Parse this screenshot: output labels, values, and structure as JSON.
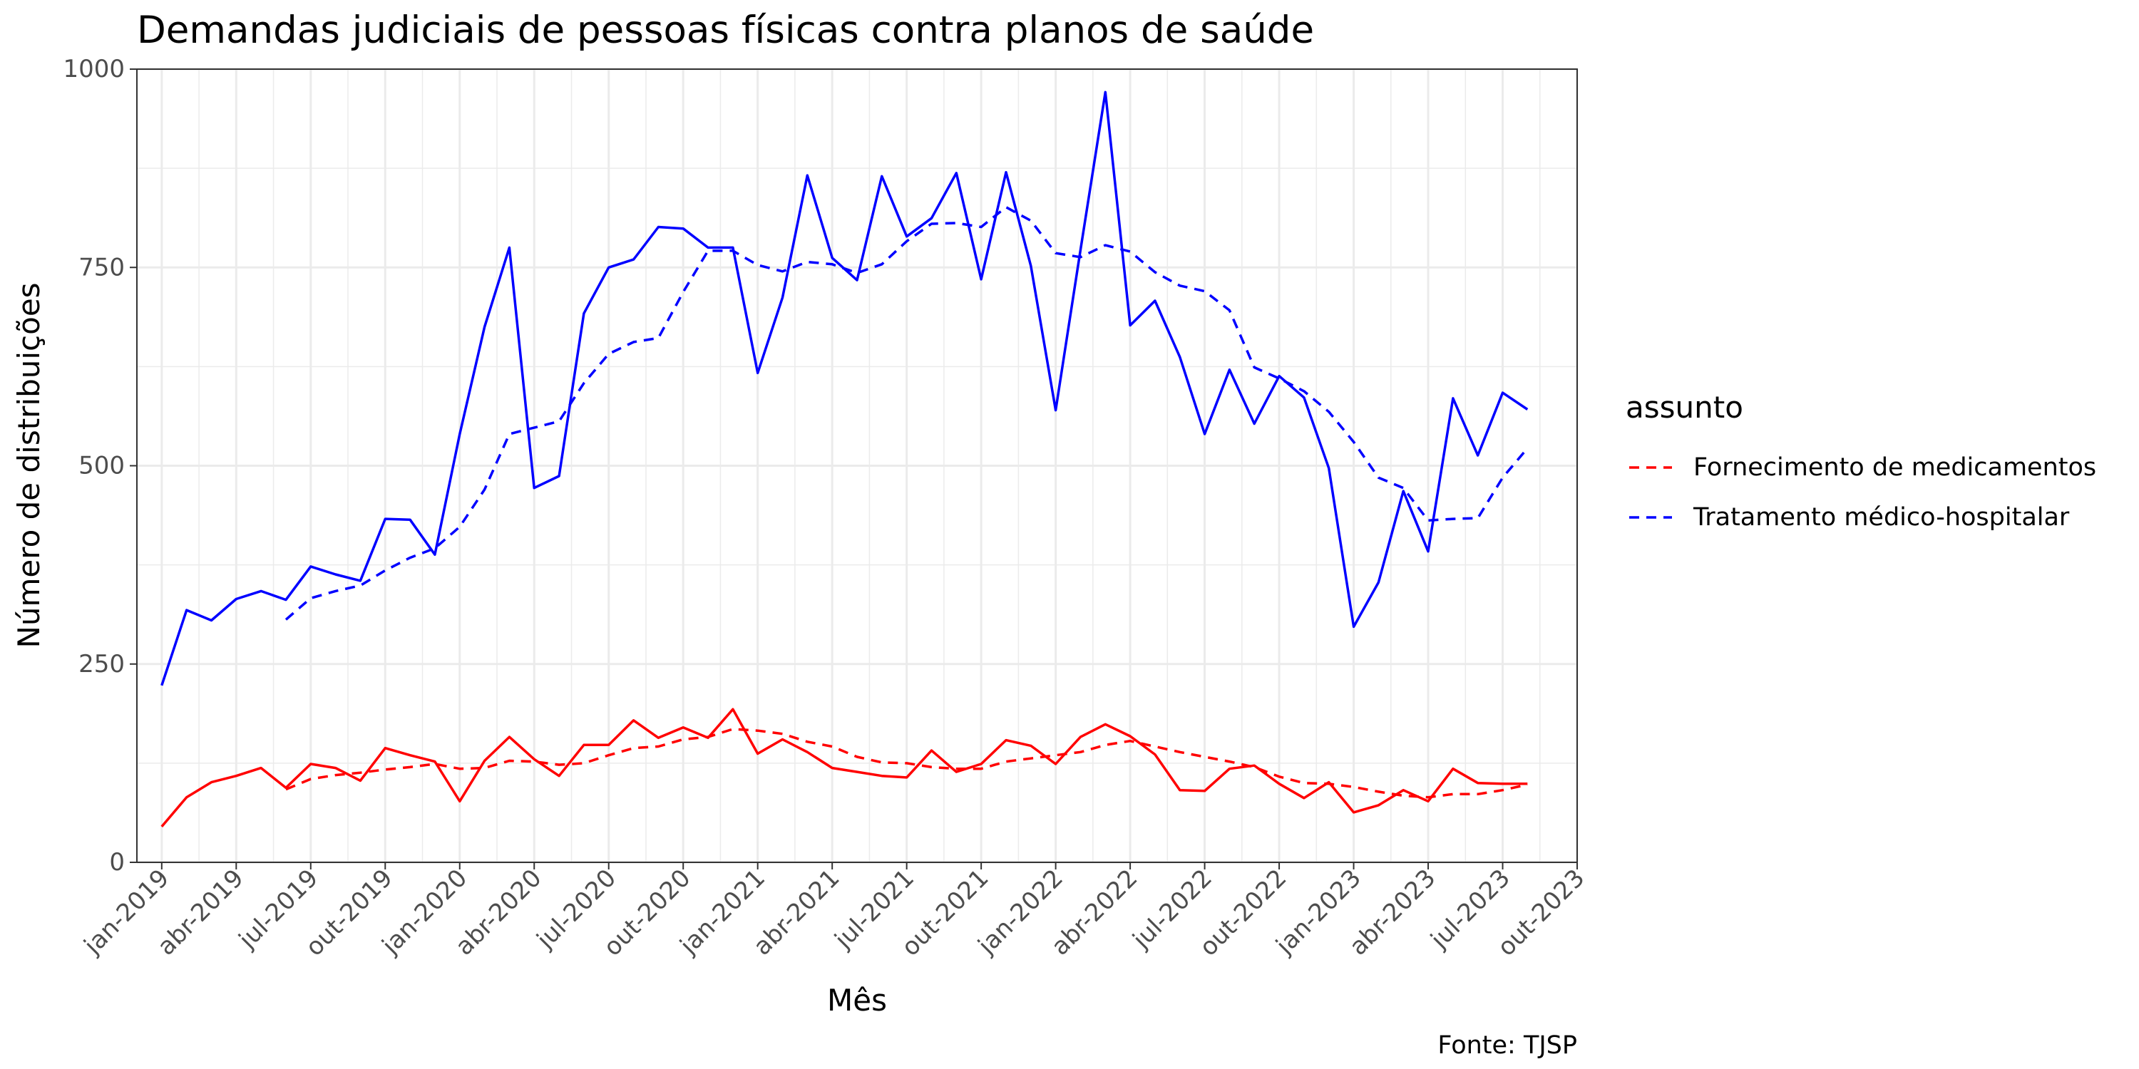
{
  "chart_data": {
    "type": "line",
    "title": "Demandas judiciais de pessoas físicas contra planos de saúde",
    "xlabel": "Mês",
    "ylabel": "Número de distribuições",
    "caption": "Fonte: TJSP",
    "legend": {
      "title": "assunto",
      "position": "right",
      "entries": [
        "Fornecimento de medicamentos",
        "Tratamento médico-hospitalar"
      ]
    },
    "x_range": [
      "2018-12",
      "2023-10"
    ],
    "ylim": [
      0,
      1000
    ],
    "y_ticks": [
      0,
      250,
      500,
      750,
      1000
    ],
    "x_ticks": [
      {
        "month": "2019-01",
        "label": "jan-2019"
      },
      {
        "month": "2019-04",
        "label": "abr-2019"
      },
      {
        "month": "2019-07",
        "label": "jul-2019"
      },
      {
        "month": "2019-10",
        "label": "out-2019"
      },
      {
        "month": "2020-01",
        "label": "jan-2020"
      },
      {
        "month": "2020-04",
        "label": "abr-2020"
      },
      {
        "month": "2020-07",
        "label": "jul-2020"
      },
      {
        "month": "2020-10",
        "label": "out-2020"
      },
      {
        "month": "2021-01",
        "label": "jan-2021"
      },
      {
        "month": "2021-04",
        "label": "abr-2021"
      },
      {
        "month": "2021-07",
        "label": "jul-2021"
      },
      {
        "month": "2021-10",
        "label": "out-2021"
      },
      {
        "month": "2022-01",
        "label": "jan-2022"
      },
      {
        "month": "2022-04",
        "label": "abr-2022"
      },
      {
        "month": "2022-07",
        "label": "jul-2022"
      },
      {
        "month": "2022-10",
        "label": "out-2022"
      },
      {
        "month": "2023-01",
        "label": "jan-2023"
      },
      {
        "month": "2023-04",
        "label": "abr-2023"
      },
      {
        "month": "2023-07",
        "label": "jul-2023"
      },
      {
        "month": "2023-10",
        "label": "out-2023"
      }
    ],
    "grid": true,
    "x_start": "2019-01",
    "series": [
      {
        "name": "Tratamento médico-hospitalar",
        "color": "#0000ff",
        "line": "solid",
        "values": [
          223,
          318,
          305,
          332,
          342,
          331,
          373,
          363,
          355,
          433,
          432,
          388,
          540,
          675,
          775,
          472,
          487,
          692,
          750,
          760,
          801,
          799,
          775,
          775,
          617,
          712,
          866,
          762,
          734,
          865,
          789,
          812,
          869,
          735,
          870,
          752,
          570,
          772,
          971,
          677,
          708,
          637,
          540,
          621,
          553,
          613,
          586,
          497,
          297,
          353,
          468,
          392,
          585,
          513,
          592,
          571
        ]
      },
      {
        "name": "Tratamento médico-hospitalar",
        "color": "#0000ff",
        "line": "dashed",
        "values": [
          null,
          null,
          null,
          null,
          null,
          306,
          333,
          342,
          349,
          368,
          384,
          396,
          423,
          470,
          540,
          548,
          556,
          604,
          641,
          656,
          661,
          719,
          771,
          771,
          753,
          745,
          757,
          754,
          743,
          754,
          783,
          805,
          806,
          801,
          826,
          809,
          768,
          763,
          778,
          770,
          744,
          727,
          720,
          696,
          624,
          610,
          594,
          568,
          530,
          485,
          472,
          431,
          433,
          434,
          485,
          522
        ]
      },
      {
        "name": "Fornecimento de medicamentos",
        "color": "#ff0000",
        "line": "solid",
        "values": [
          45,
          82,
          101,
          109,
          119,
          94,
          124,
          119,
          103,
          144,
          135,
          127,
          77,
          128,
          158,
          130,
          109,
          148,
          148,
          179,
          157,
          170,
          157,
          193,
          137,
          155,
          139,
          119,
          114,
          109,
          107,
          141,
          114,
          124,
          154,
          147,
          124,
          158,
          174,
          159,
          136,
          91,
          90,
          118,
          122,
          99,
          81,
          101,
          63,
          72,
          91,
          77,
          118,
          100,
          99,
          99
        ]
      },
      {
        "name": "Fornecimento de medicamentos",
        "color": "#ff0000",
        "line": "dashed",
        "values": [
          null,
          null,
          null,
          null,
          null,
          92,
          105,
          110,
          113,
          117,
          120,
          124,
          118,
          119,
          128,
          127,
          123,
          125,
          135,
          144,
          146,
          155,
          158,
          168,
          166,
          162,
          152,
          146,
          133,
          126,
          125,
          120,
          118,
          118,
          127,
          131,
          135,
          139,
          148,
          153,
          146,
          139,
          133,
          127,
          120,
          108,
          100,
          99,
          95,
          89,
          84,
          82,
          86,
          86,
          91,
          98
        ]
      }
    ]
  }
}
